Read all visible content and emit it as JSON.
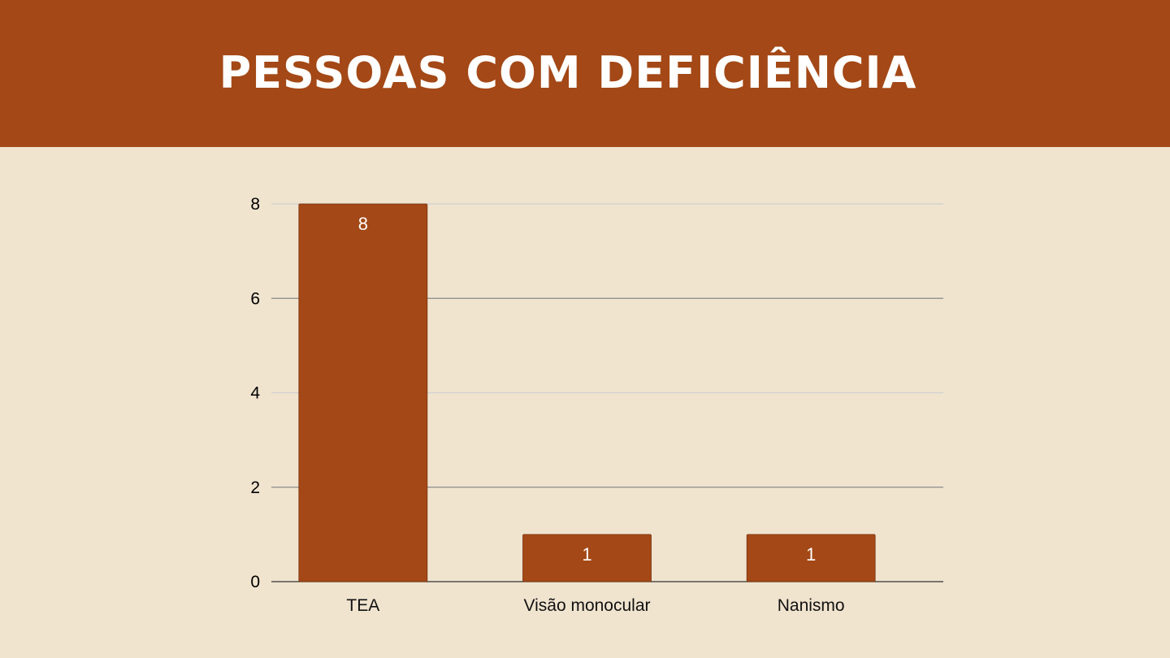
{
  "header": {
    "title": "Pessoas com deficiência"
  },
  "colors": {
    "header_bg": "#a34816",
    "page_bg": "#f0e4cf",
    "bar": "#a34816",
    "bar_label": "#ffffff"
  },
  "chart_data": {
    "type": "bar",
    "title": "Pessoas com deficiência",
    "categories": [
      "TEA",
      "Visão monocular",
      "Nanismo"
    ],
    "values": [
      8,
      1,
      1
    ],
    "data_labels": [
      "8",
      "1",
      "1"
    ],
    "ylim": [
      0,
      8
    ],
    "yticks": [
      0,
      2,
      4,
      6,
      8
    ],
    "ytick_labels": [
      "0",
      "2",
      "4",
      "6",
      "8"
    ],
    "xlabel": "",
    "ylabel": "",
    "grid": true,
    "legend": "none"
  }
}
